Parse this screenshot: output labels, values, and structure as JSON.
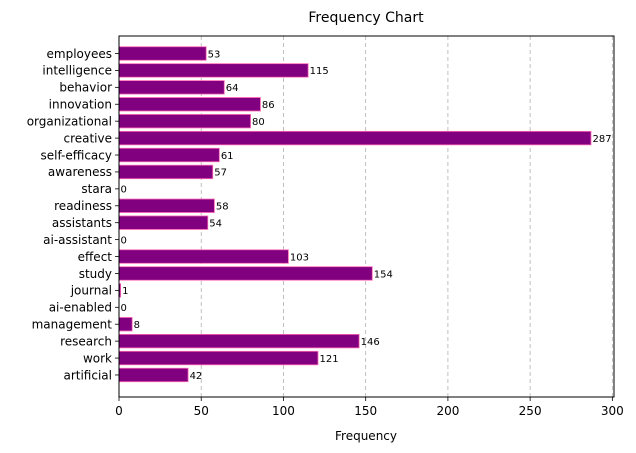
{
  "chart_data": {
    "type": "bar",
    "orientation": "horizontal",
    "title": "Frequency Chart",
    "xlabel": "Frequency",
    "ylabel": "",
    "xlim": [
      0,
      301
    ],
    "xticks": [
      0,
      50,
      100,
      150,
      200,
      250,
      300
    ],
    "grid": "x-dashed",
    "bar_color": "#800080",
    "bar_edge_color": "#ff69b4",
    "categories": [
      "employees",
      "intelligence",
      "behavior",
      "innovation",
      "organizational",
      "creative",
      "self-efficacy",
      "awareness",
      "stara",
      "readiness",
      "assistants",
      "ai-assistant",
      "effect",
      "study",
      "journal",
      "ai-enabled",
      "management",
      "research",
      "work",
      "artificial"
    ],
    "values": [
      53,
      115,
      64,
      86,
      80,
      287,
      61,
      57,
      0,
      58,
      54,
      0,
      103,
      154,
      1,
      0,
      8,
      146,
      121,
      42
    ]
  }
}
